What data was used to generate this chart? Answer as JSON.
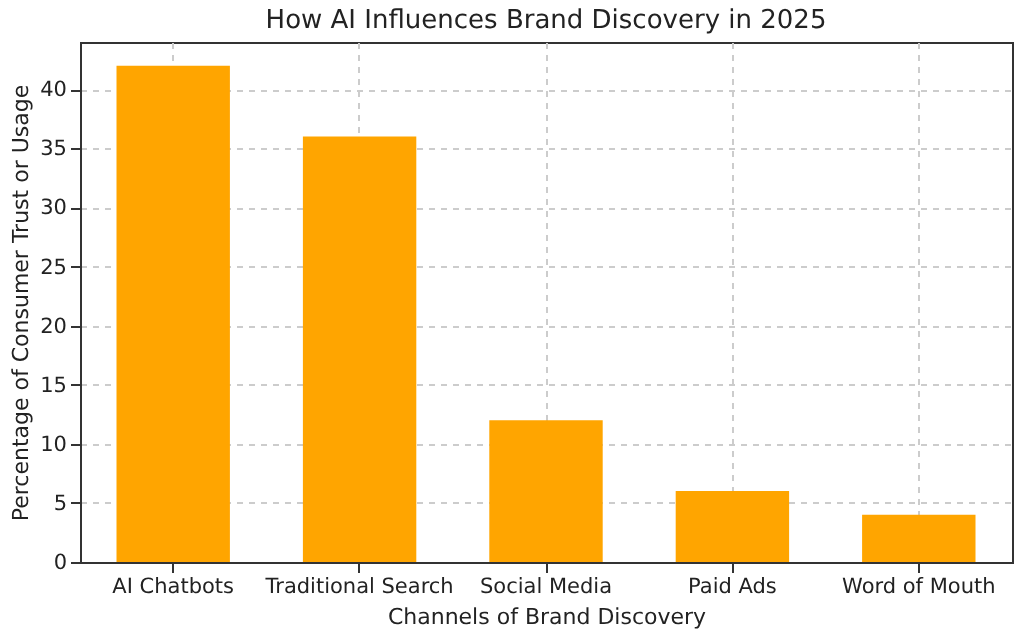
{
  "chart_data": {
    "type": "bar",
    "title": "How AI Influences Brand Discovery in 2025",
    "xlabel": "Channels of Brand Discovery",
    "ylabel": "Percentage of Consumer Trust or Usage",
    "categories": [
      "AI Chatbots",
      "Traditional Search",
      "Social Media",
      "Paid Ads",
      "Word of Mouth"
    ],
    "values": [
      42,
      36,
      12,
      6,
      4
    ],
    "color": "#ffa500",
    "ylim": [
      0,
      44
    ],
    "yticks": [
      0,
      5,
      10,
      15,
      20,
      25,
      30,
      35,
      40
    ],
    "grid": true
  }
}
